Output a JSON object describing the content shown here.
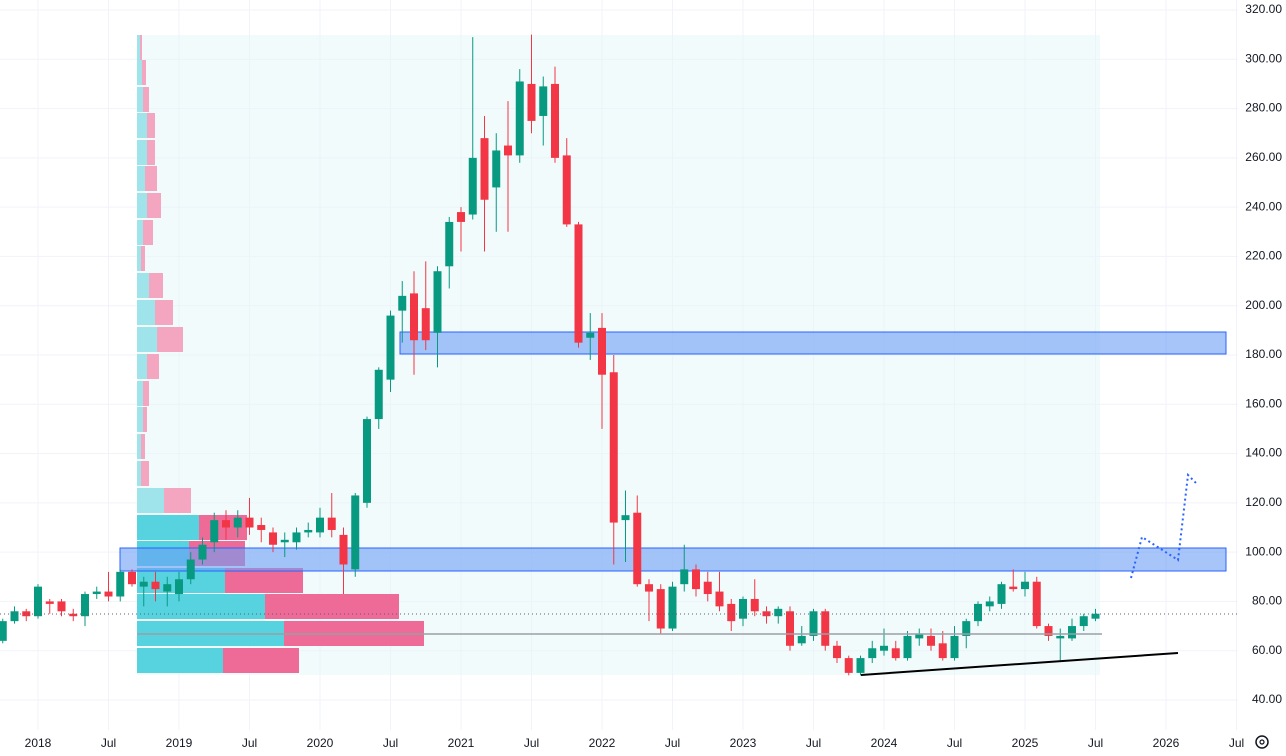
{
  "chart_data": {
    "type": "candlestick",
    "x": [
      "2017-10",
      "2017-11",
      "2017-12",
      "2018-01",
      "2018-02",
      "2018-03",
      "2018-04",
      "2018-05",
      "2018-06",
      "2018-07",
      "2018-08",
      "2018-09",
      "2018-10",
      "2018-11",
      "2018-12",
      "2019-01",
      "2019-02",
      "2019-03",
      "2019-04",
      "2019-05",
      "2019-06",
      "2019-07",
      "2019-08",
      "2019-09",
      "2019-10",
      "2019-11",
      "2019-12",
      "2020-01",
      "2020-02",
      "2020-03",
      "2020-04",
      "2020-05",
      "2020-06",
      "2020-07",
      "2020-08",
      "2020-09",
      "2020-10",
      "2020-11",
      "2020-12",
      "2021-01",
      "2021-02",
      "2021-03",
      "2021-04",
      "2021-05",
      "2021-06",
      "2021-07",
      "2021-08",
      "2021-09",
      "2021-10",
      "2021-11",
      "2021-12",
      "2022-01",
      "2022-02",
      "2022-03",
      "2022-04",
      "2022-05",
      "2022-06",
      "2022-07",
      "2022-08",
      "2022-09",
      "2022-10",
      "2022-11",
      "2022-12",
      "2023-01",
      "2023-02",
      "2023-03",
      "2023-04",
      "2023-05",
      "2023-06",
      "2023-07",
      "2023-08",
      "2023-09",
      "2023-10",
      "2023-11",
      "2023-12",
      "2024-01",
      "2024-02",
      "2024-03",
      "2024-04",
      "2024-05",
      "2024-06",
      "2024-07",
      "2024-08",
      "2024-09",
      "2024-10",
      "2024-11",
      "2024-12",
      "2025-01",
      "2025-02",
      "2025-03",
      "2025-04",
      "2025-05",
      "2025-06",
      "2025-07"
    ],
    "open": [
      64,
      72,
      76,
      74,
      80,
      80,
      75,
      74,
      83,
      84,
      82,
      92,
      86,
      88,
      84,
      83,
      89,
      97,
      104,
      113,
      110,
      114,
      111,
      108,
      104,
      104,
      108,
      108,
      114,
      107,
      93,
      120,
      154,
      170,
      198,
      205,
      199,
      189,
      216,
      238,
      237,
      268,
      248,
      265,
      261,
      290,
      277,
      290,
      261,
      233,
      187,
      191,
      173,
      113,
      116,
      87,
      85,
      69,
      87,
      93,
      88,
      84,
      79,
      73,
      81,
      76,
      74,
      76,
      63,
      66,
      76,
      62,
      57,
      51,
      57,
      60,
      61,
      57,
      65,
      66,
      63,
      57,
      66,
      72,
      78,
      79,
      86,
      85,
      88,
      70,
      65,
      65,
      70,
      73
    ],
    "high": [
      73,
      78,
      77,
      87,
      81,
      81,
      77,
      84,
      86,
      92,
      93,
      93,
      90,
      92,
      90,
      92,
      100,
      106,
      116,
      117,
      117,
      122,
      114,
      110,
      108,
      110,
      112,
      118,
      124,
      110,
      124,
      155,
      175,
      198,
      210,
      214,
      218,
      216,
      236,
      240,
      309,
      277,
      270,
      283,
      296,
      310,
      293,
      297,
      268,
      234,
      197,
      197,
      180,
      125,
      123,
      89,
      87,
      88,
      103,
      95,
      92,
      92,
      81,
      82,
      89,
      78,
      78,
      78,
      70,
      77,
      77,
      64,
      58,
      58,
      64,
      69,
      64,
      68,
      69,
      69,
      68,
      70,
      73,
      80,
      82,
      88,
      93,
      92,
      90,
      71,
      69,
      73,
      75,
      77
    ],
    "low": [
      63,
      71,
      72,
      73,
      75,
      74,
      72,
      70,
      81,
      80,
      80,
      86,
      78,
      80,
      78,
      80,
      87,
      95,
      100,
      105,
      106,
      107,
      104,
      100,
      98,
      101,
      106,
      106,
      106,
      83,
      90,
      118,
      150,
      165,
      185,
      172,
      182,
      175,
      207,
      222,
      235,
      222,
      230,
      230,
      258,
      270,
      265,
      258,
      232,
      183,
      178,
      150,
      95,
      96,
      86,
      72,
      67,
      68,
      84,
      82,
      80,
      76,
      68,
      70,
      74,
      71,
      71,
      60,
      62,
      64,
      60,
      55,
      50,
      50,
      55,
      58,
      56,
      56,
      62,
      60,
      56,
      56,
      61,
      70,
      76,
      77,
      84,
      82,
      69,
      64,
      56,
      64,
      68,
      72
    ],
    "close": [
      72,
      76,
      74,
      86,
      79,
      76,
      74,
      83,
      84,
      82,
      92,
      87,
      88,
      85,
      87,
      89,
      97,
      103,
      113,
      110,
      114,
      110,
      109,
      103,
      105,
      108,
      109,
      114,
      109,
      95,
      123,
      154,
      174,
      196,
      204,
      186,
      186,
      214,
      234,
      234,
      260,
      243,
      263,
      261,
      291,
      275,
      289,
      260,
      233,
      185,
      189,
      172,
      112,
      115,
      87,
      84,
      69,
      86,
      93,
      85,
      83,
      78,
      72,
      81,
      76,
      74,
      77,
      62,
      66,
      76,
      62,
      57,
      51,
      57,
      61,
      62,
      57,
      66,
      67,
      62,
      57,
      66,
      72,
      79,
      80,
      87,
      85,
      88,
      70,
      66,
      66,
      70,
      74,
      75
    ],
    "up_color": "#089981",
    "down_color": "#f23645",
    "ylim": [
      40,
      320
    ],
    "yticks": [
      {
        "value": 40,
        "label": "40.00"
      },
      {
        "value": 60,
        "label": "60.00"
      },
      {
        "value": 80,
        "label": "80.00"
      },
      {
        "value": 100,
        "label": "100.00"
      },
      {
        "value": 120,
        "label": "120.00"
      },
      {
        "value": 140,
        "label": "140.00"
      },
      {
        "value": 160,
        "label": "160.00"
      },
      {
        "value": 180,
        "label": "180.00"
      },
      {
        "value": 200,
        "label": "200.00"
      },
      {
        "value": 220,
        "label": "220.00"
      },
      {
        "value": 240,
        "label": "240.00"
      },
      {
        "value": 260,
        "label": "260.00"
      },
      {
        "value": 280,
        "label": "280.00"
      },
      {
        "value": 300,
        "label": "300.00"
      },
      {
        "value": 320,
        "label": "320.00"
      }
    ],
    "xticks": [
      {
        "value": "2018-01",
        "label": "2018"
      },
      {
        "value": "2018-07",
        "label": "Jul"
      },
      {
        "value": "2019-01",
        "label": "2019"
      },
      {
        "value": "2019-07",
        "label": "Jul"
      },
      {
        "value": "2020-01",
        "label": "2020"
      },
      {
        "value": "2020-07",
        "label": "Jul"
      },
      {
        "value": "2021-01",
        "label": "2021"
      },
      {
        "value": "2021-07",
        "label": "Jul"
      },
      {
        "value": "2022-01",
        "label": "2022"
      },
      {
        "value": "2022-07",
        "label": "Jul"
      },
      {
        "value": "2023-01",
        "label": "2023"
      },
      {
        "value": "2023-07",
        "label": "Jul"
      },
      {
        "value": "2024-01",
        "label": "2024"
      },
      {
        "value": "2024-07",
        "label": "Jul"
      },
      {
        "value": "2025-01",
        "label": "2025"
      },
      {
        "value": "2025-07",
        "label": "Jul"
      },
      {
        "value": "2026-01",
        "label": "2026"
      },
      {
        "value": "2026-07",
        "label": "Jul"
      }
    ],
    "grid": true
  }
}
